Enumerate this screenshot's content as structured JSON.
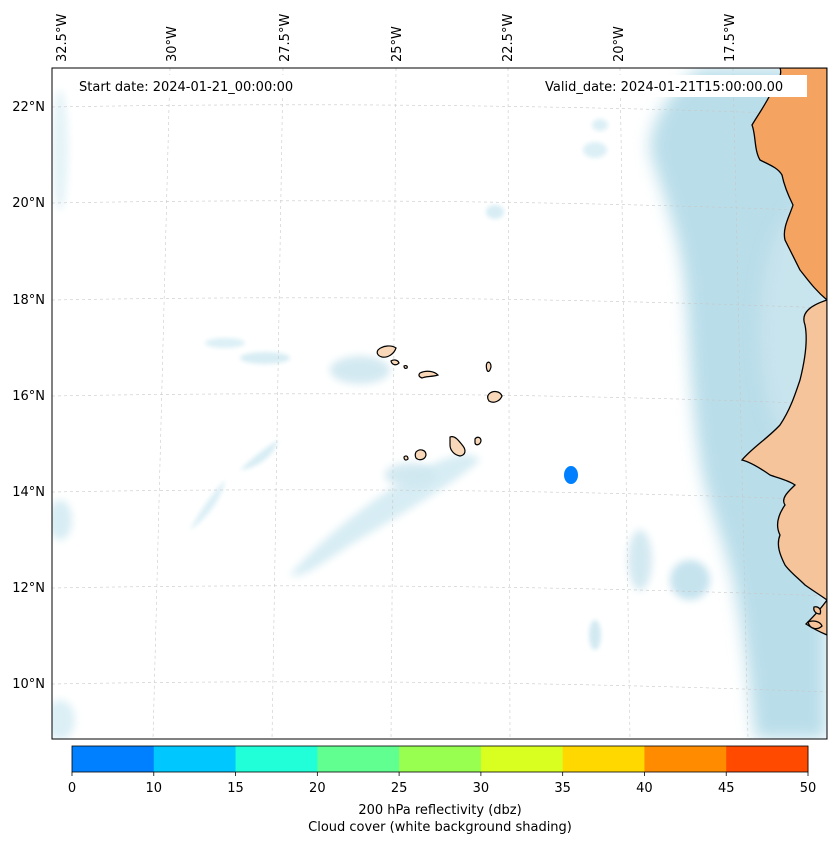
{
  "annotations": {
    "start_date": "Start date: 2024-01-21_00:00:00",
    "valid_date": "Valid_date: 2024-01-21T15:00:00.00"
  },
  "longitude_labels": [
    "32.5°W",
    "30°W",
    "27.5°W",
    "25°W",
    "22.5°W",
    "20°W",
    "17.5°W"
  ],
  "latitude_labels": [
    "22°N",
    "20°N",
    "18°N",
    "16°N",
    "14°N",
    "12°N",
    "10°N"
  ],
  "colorbar": {
    "ticks": [
      "0",
      "10",
      "15",
      "20",
      "25",
      "30",
      "35",
      "40",
      "45",
      "50"
    ],
    "colors": [
      "#0080ff",
      "#00c8ff",
      "#20ffd8",
      "#60ff90",
      "#98ff50",
      "#d8ff20",
      "#ffd800",
      "#ff8c00",
      "#ff4a00"
    ],
    "label_line1": "200 hPa reflectivity (dbz)",
    "label_line2": "Cloud cover (white background shading)"
  },
  "colors": {
    "cloud": "#add8e6",
    "land": "#f4a460",
    "reflectivity_cell": "#0080ff"
  },
  "features": {
    "islands": "Cape Verde islands",
    "coastline": "West African coast"
  }
}
